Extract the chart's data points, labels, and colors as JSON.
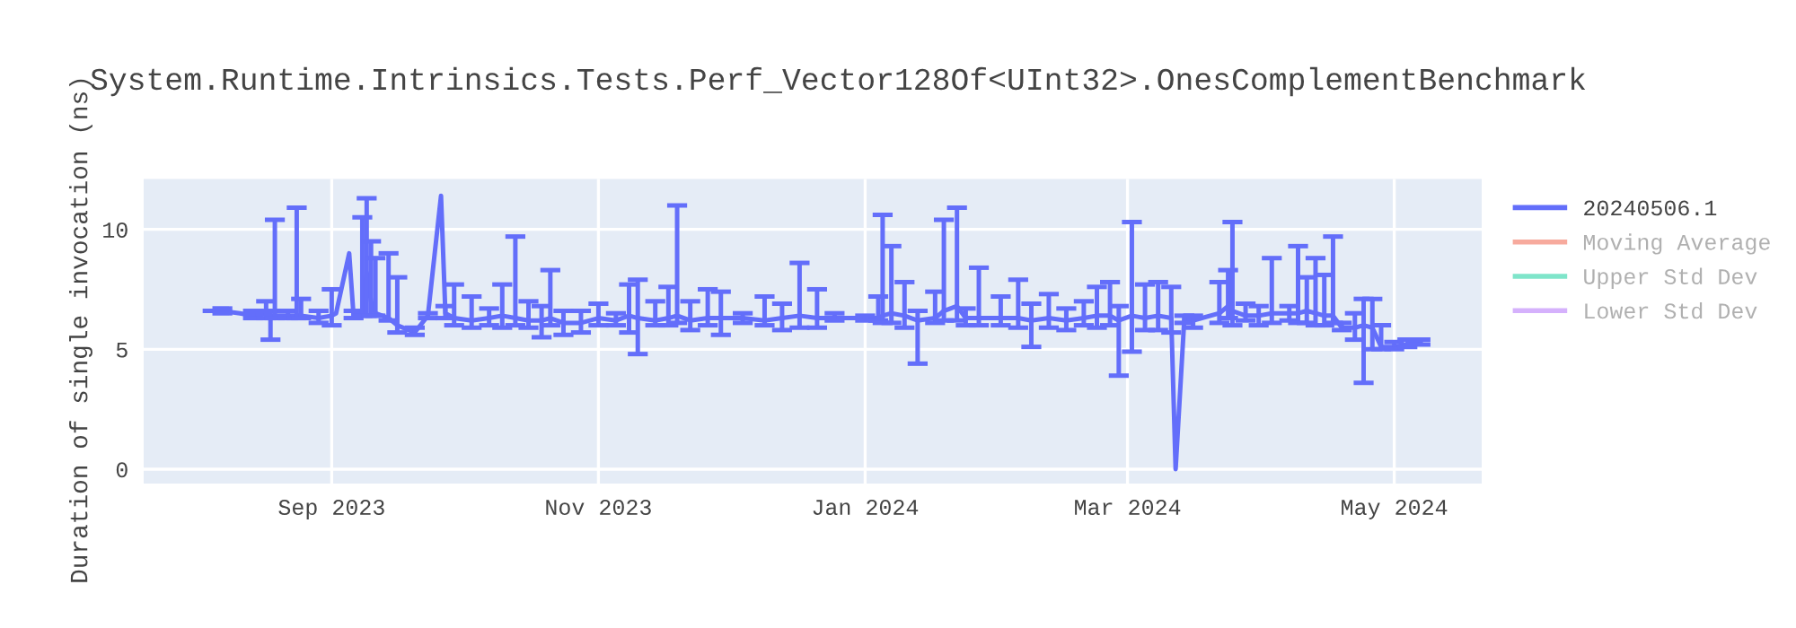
{
  "chart_data": {
    "type": "line",
    "title": "System.Runtime.Intrinsics.Tests.Perf_Vector128Of<UInt32>.OnesComplementBenchmark",
    "ylabel": "Duration of single invocation (ns)",
    "x": [
      "2023-08-03",
      "2023-08-07",
      "2023-08-11",
      "2023-08-14",
      "2023-08-17",
      "2023-08-18",
      "2023-08-19",
      "2023-08-22",
      "2023-08-24",
      "2023-08-25",
      "2023-08-29",
      "2023-09-01",
      "2023-09-02",
      "2023-09-05",
      "2023-09-06",
      "2023-09-08",
      "2023-09-09",
      "2023-09-10",
      "2023-09-11",
      "2023-09-14",
      "2023-09-16",
      "2023-09-20",
      "2023-09-23",
      "2023-09-26",
      "2023-09-27",
      "2023-09-29",
      "2023-10-03",
      "2023-10-07",
      "2023-10-10",
      "2023-10-13",
      "2023-10-16",
      "2023-10-19",
      "2023-10-21",
      "2023-10-24",
      "2023-10-28",
      "2023-11-01",
      "2023-11-05",
      "2023-11-08",
      "2023-11-10",
      "2023-11-14",
      "2023-11-17",
      "2023-11-19",
      "2023-11-22",
      "2023-11-26",
      "2023-11-29",
      "2023-12-04",
      "2023-12-09",
      "2023-12-13",
      "2023-12-17",
      "2023-12-21",
      "2023-12-25",
      "2024-01-01",
      "2024-01-04",
      "2024-01-05",
      "2024-01-07",
      "2024-01-10",
      "2024-01-13",
      "2024-01-17",
      "2024-01-19",
      "2024-01-22",
      "2024-01-24",
      "2024-01-27",
      "2024-02-01",
      "2024-02-05",
      "2024-02-08",
      "2024-02-12",
      "2024-02-16",
      "2024-02-20",
      "2024-02-23",
      "2024-02-26",
      "2024-02-28",
      "2024-03-02",
      "2024-03-05",
      "2024-03-08",
      "2024-03-11",
      "2024-03-12",
      "2024-03-14",
      "2024-03-16",
      "2024-03-22",
      "2024-03-24",
      "2024-03-25",
      "2024-03-28",
      "2024-03-31",
      "2024-04-03",
      "2024-04-07",
      "2024-04-09",
      "2024-04-11",
      "2024-04-13",
      "2024-04-15",
      "2024-04-17",
      "2024-04-19",
      "2024-04-22",
      "2024-04-24",
      "2024-04-26",
      "2024-04-28",
      "2024-05-01",
      "2024-05-04",
      "2024-05-07"
    ],
    "series": [
      {
        "name": "20240506.1",
        "color": "#636efa",
        "values": [
          6.6,
          6.6,
          6.5,
          6.4,
          6.5,
          6.4,
          6.4,
          6.4,
          6.4,
          6.4,
          6.3,
          6.4,
          6.5,
          9.0,
          6.4,
          6.5,
          8.2,
          7.0,
          6.5,
          6.3,
          6.0,
          5.7,
          6.4,
          11.4,
          6.5,
          6.3,
          6.2,
          6.3,
          6.4,
          6.3,
          6.2,
          6.2,
          6.3,
          6.1,
          6.1,
          6.3,
          6.2,
          6.4,
          6.3,
          6.2,
          6.3,
          6.4,
          6.2,
          6.3,
          6.3,
          6.3,
          6.2,
          6.3,
          6.4,
          6.3,
          6.3,
          6.3,
          6.3,
          6.4,
          6.5,
          6.4,
          6.2,
          6.3,
          6.6,
          6.8,
          6.3,
          6.3,
          6.3,
          6.3,
          6.2,
          6.3,
          6.2,
          6.3,
          6.4,
          6.4,
          6.2,
          6.4,
          6.3,
          6.4,
          6.3,
          0.0,
          6.3,
          6.2,
          6.5,
          6.8,
          6.6,
          6.4,
          6.4,
          6.5,
          6.5,
          6.5,
          6.6,
          6.5,
          6.4,
          6.4,
          5.9,
          5.9,
          6.0,
          5.9,
          5.1,
          5.1,
          5.2,
          5.3
        ],
        "errors": [
          null,
          [
            6.5,
            6.7
          ],
          null,
          [
            6.3,
            6.6
          ],
          [
            6.3,
            7.0
          ],
          [
            5.4,
            6.6
          ],
          [
            6.3,
            10.4
          ],
          [
            6.3,
            6.6
          ],
          [
            6.3,
            10.9
          ],
          [
            6.3,
            7.1
          ],
          [
            6.1,
            6.6
          ],
          [
            6.0,
            7.5
          ],
          null,
          null,
          [
            6.3,
            6.6
          ],
          [
            6.4,
            10.5
          ],
          [
            6.4,
            11.3
          ],
          [
            6.4,
            9.5
          ],
          [
            6.4,
            8.8
          ],
          [
            6.2,
            9.0
          ],
          [
            5.7,
            8.0
          ],
          [
            5.6,
            5.9
          ],
          [
            6.3,
            6.5
          ],
          null,
          [
            6.3,
            6.8
          ],
          [
            6.0,
            7.7
          ],
          [
            5.9,
            7.2
          ],
          [
            6.0,
            6.7
          ],
          [
            5.9,
            7.7
          ],
          [
            6.0,
            9.7
          ],
          [
            5.9,
            7.0
          ],
          [
            5.5,
            6.8
          ],
          [
            6.0,
            8.3
          ],
          [
            5.6,
            6.6
          ],
          [
            5.7,
            6.6
          ],
          [
            6.0,
            6.9
          ],
          [
            6.0,
            6.5
          ],
          [
            5.7,
            7.7
          ],
          [
            4.8,
            7.9
          ],
          [
            6.0,
            7.0
          ],
          [
            6.0,
            7.6
          ],
          [
            6.1,
            11.0
          ],
          [
            5.8,
            7.0
          ],
          [
            6.0,
            7.5
          ],
          [
            5.6,
            7.4
          ],
          [
            6.1,
            6.5
          ],
          [
            6.0,
            7.2
          ],
          [
            5.8,
            6.9
          ],
          [
            5.9,
            8.6
          ],
          [
            5.9,
            7.5
          ],
          [
            6.2,
            6.5
          ],
          [
            6.2,
            6.4
          ],
          [
            6.2,
            7.2
          ],
          [
            6.1,
            10.6
          ],
          [
            6.1,
            9.3
          ],
          [
            5.9,
            7.8
          ],
          [
            4.4,
            6.6
          ],
          [
            6.1,
            7.4
          ],
          [
            6.2,
            10.4
          ],
          [
            6.2,
            10.9
          ],
          [
            6.0,
            6.7
          ],
          [
            6.0,
            8.4
          ],
          [
            6.0,
            7.2
          ],
          [
            5.9,
            7.9
          ],
          [
            5.1,
            6.9
          ],
          [
            5.9,
            7.3
          ],
          [
            5.8,
            6.7
          ],
          [
            6.0,
            7.0
          ],
          [
            5.9,
            7.6
          ],
          [
            6.0,
            7.8
          ],
          [
            3.9,
            6.8
          ],
          [
            4.9,
            10.3
          ],
          [
            5.8,
            7.7
          ],
          [
            5.8,
            7.8
          ],
          [
            5.7,
            7.6
          ],
          null,
          [
            6.1,
            6.4
          ],
          [
            5.9,
            6.4
          ],
          [
            6.1,
            7.8
          ],
          [
            6.3,
            8.3
          ],
          [
            6.0,
            10.3
          ],
          [
            6.2,
            6.9
          ],
          [
            6.0,
            6.8
          ],
          [
            6.1,
            8.8
          ],
          [
            6.2,
            6.8
          ],
          [
            6.1,
            9.3
          ],
          [
            6.1,
            8.0
          ],
          [
            6.0,
            8.8
          ],
          [
            6.0,
            8.1
          ],
          [
            6.1,
            9.7
          ],
          [
            5.8,
            6.1
          ],
          [
            5.4,
            6.5
          ],
          [
            3.6,
            7.1
          ],
          [
            5.0,
            7.1
          ],
          [
            5.0,
            6.0
          ],
          [
            5.0,
            5.3
          ],
          [
            5.1,
            5.4
          ],
          [
            5.2,
            5.4
          ]
        ]
      },
      {
        "name": "Moving Average",
        "color": "#ef553b",
        "values": [
          null,
          null,
          null,
          null,
          null,
          null,
          null,
          null,
          null,
          null,
          null,
          null,
          null,
          null,
          null,
          null,
          null,
          null,
          null,
          null,
          null,
          null,
          null,
          null,
          null,
          null,
          null,
          null,
          null,
          null,
          null,
          null,
          null,
          null,
          null,
          null,
          null,
          null,
          null,
          null,
          null,
          null,
          null,
          null,
          null,
          null,
          null,
          null,
          null,
          null,
          null,
          null,
          null,
          null,
          null,
          null,
          null,
          null,
          null,
          null,
          null,
          null,
          null,
          null,
          null,
          null,
          null,
          null,
          null,
          null,
          null,
          null,
          null,
          null,
          null,
          null,
          null,
          null,
          null,
          null,
          null,
          null,
          null,
          null,
          null,
          null,
          null,
          null,
          null,
          null,
          null,
          null,
          null,
          null,
          null,
          null,
          null,
          null
        ]
      },
      {
        "name": "Upper Std Dev",
        "color": "#00cc96",
        "values": [
          null,
          null,
          null,
          null,
          null,
          null,
          null,
          null,
          null,
          null,
          null,
          null,
          null,
          null,
          null,
          null,
          null,
          null,
          null,
          null,
          null,
          null,
          null,
          null,
          null,
          null,
          null,
          null,
          null,
          null,
          null,
          null,
          null,
          null,
          null,
          null,
          null,
          null,
          null,
          null,
          null,
          null,
          null,
          null,
          null,
          null,
          null,
          null,
          null,
          null,
          null,
          null,
          null,
          null,
          null,
          null,
          null,
          null,
          null,
          null,
          null,
          null,
          null,
          null,
          null,
          null,
          null,
          null,
          null,
          null,
          null,
          null,
          null,
          null,
          null,
          null,
          null,
          null,
          null,
          null,
          null,
          null,
          null,
          null,
          null,
          null,
          null,
          null,
          null,
          null,
          null,
          null,
          null,
          null,
          null,
          null,
          null,
          null
        ]
      },
      {
        "name": "Lower Std Dev",
        "color": "#ab63fa",
        "values": [
          null,
          null,
          null,
          null,
          null,
          null,
          null,
          null,
          null,
          null,
          null,
          null,
          null,
          null,
          null,
          null,
          null,
          null,
          null,
          null,
          null,
          null,
          null,
          null,
          null,
          null,
          null,
          null,
          null,
          null,
          null,
          null,
          null,
          null,
          null,
          null,
          null,
          null,
          null,
          null,
          null,
          null,
          null,
          null,
          null,
          null,
          null,
          null,
          null,
          null,
          null,
          null,
          null,
          null,
          null,
          null,
          null,
          null,
          null,
          null,
          null,
          null,
          null,
          null,
          null,
          null,
          null,
          null,
          null,
          null,
          null,
          null,
          null,
          null,
          null,
          null,
          null,
          null,
          null,
          null,
          null,
          null,
          null,
          null,
          null,
          null,
          null,
          null,
          null,
          null,
          null,
          null,
          null,
          null,
          null,
          null,
          null,
          null
        ]
      }
    ],
    "xlim": [
      "2023-07-20",
      "2024-05-21"
    ],
    "xticks": [
      {
        "value": "2023-09-01",
        "label": "Sep 2023"
      },
      {
        "value": "2023-11-01",
        "label": "Nov 2023"
      },
      {
        "value": "2024-01-01",
        "label": "Jan 2024"
      },
      {
        "value": "2024-03-01",
        "label": "Mar 2024"
      },
      {
        "value": "2024-05-01",
        "label": "May 2024"
      }
    ],
    "ylim": [
      -0.6,
      12.1
    ],
    "yticks": [
      0,
      5,
      10
    ],
    "grid": true,
    "legend": "top right"
  }
}
